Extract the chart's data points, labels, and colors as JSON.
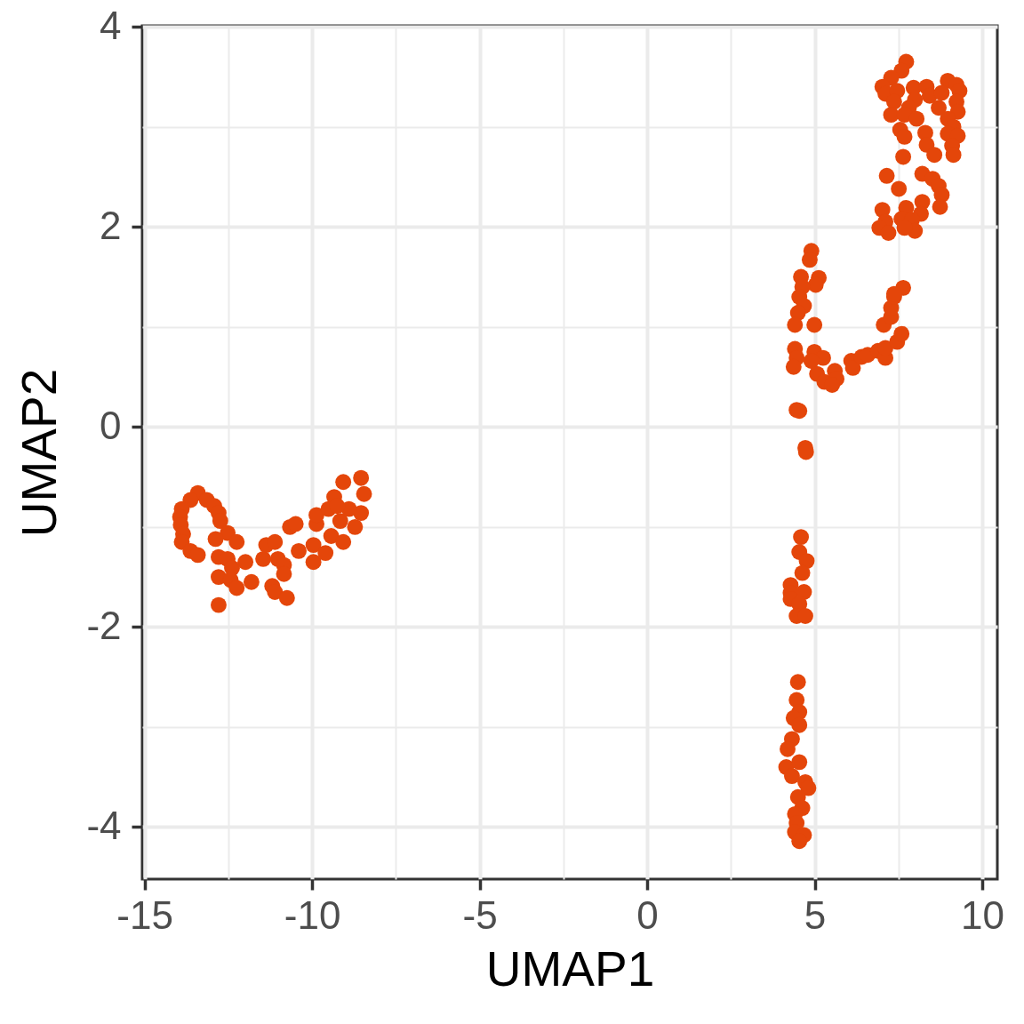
{
  "chart_data": {
    "type": "scatter",
    "xlabel": "UMAP1",
    "ylabel": "UMAP2",
    "xlim": [
      -15.07,
      10.45
    ],
    "ylim": [
      -4.52,
      4.01
    ],
    "xticks": [
      -15,
      {
        "value": -12.5,
        "label": null
      },
      -10,
      {
        "value": -7.5,
        "label": null
      },
      -5,
      {
        "value": -2.5,
        "label": null
      },
      0,
      {
        "value": 2.5,
        "label": null
      },
      5,
      {
        "value": 7.5,
        "label": null
      },
      10
    ],
    "yticks": [
      -4,
      {
        "value": -3,
        "label": null
      },
      -2,
      {
        "value": -1,
        "label": null
      },
      0,
      {
        "value": 1,
        "label": null
      },
      2,
      {
        "value": 3,
        "label": null
      },
      4
    ],
    "grid": true,
    "marker": "circle",
    "series": [
      {
        "color": "#e4460a",
        "x": [
          -13.41,
          -13.63,
          -13.89,
          -13.94,
          -13.92,
          -13.85,
          -13.89,
          -13.63,
          -13.41,
          -13.14,
          -12.92,
          -12.79,
          -12.74,
          -12.52,
          -12.88,
          -12.25,
          -12.79,
          -12.52,
          -11.99,
          -12.39,
          -12.79,
          -12.43,
          -12.25,
          -12.79,
          -11.81,
          -11.46,
          -11.37,
          -11.11,
          -11.02,
          -10.84,
          -10.84,
          -11.19,
          -11.11,
          -10.75,
          -10.66,
          -10.49,
          -10.4,
          -9.96,
          -9.87,
          -9.87,
          -9.96,
          -9.6,
          -9.43,
          -9.51,
          -9.34,
          -9.07,
          -8.54,
          -8.45,
          -8.54,
          -8.72,
          -9.07,
          -9.16,
          -8.9,
          -9.25,
          7.73,
          7.59,
          7.28,
          7.02,
          7.11,
          7.46,
          7.37,
          7.95,
          8.34,
          8.43,
          7.99,
          7.81,
          7.28,
          7.68,
          8.04,
          7.55,
          7.68,
          8.3,
          8.34,
          8.57,
          8.97,
          9.23,
          9.32,
          8.79,
          8.7,
          9.23,
          9.27,
          8.97,
          9.14,
          8.97,
          9.27,
          9.1,
          9.14,
          7.64,
          7.15,
          7.51,
          8.21,
          8.52,
          8.7,
          8.79,
          8.74,
          8.21,
          8.17,
          7.73,
          7.59,
          7.9,
          7.99,
          7.68,
          7.02,
          7.11,
          6.93,
          7.2,
          4.9,
          4.85,
          4.59,
          5.12,
          5.03,
          4.63,
          4.54,
          4.68,
          4.5,
          4.41,
          4.99,
          4.41,
          4.46,
          4.37,
          4.99,
          5.25,
          4.9,
          5.07,
          5.29,
          5.6,
          5.65,
          5.52,
          6.09,
          6.14,
          6.4,
          6.58,
          6.89,
          7.11,
          7.11,
          7.46,
          7.59,
          7.06,
          7.28,
          7.28,
          7.37,
          7.64,
          7.37,
          4.46,
          4.72,
          4.54,
          4.74,
          4.59,
          4.54,
          4.76,
          4.63,
          4.28,
          4.28,
          4.68,
          4.28,
          4.54,
          4.46,
          4.72,
          4.5,
          4.46,
          4.54,
          4.37,
          4.54,
          4.32,
          4.19,
          4.15,
          4.54,
          4.32,
          4.72,
          4.81,
          4.5,
          4.63,
          4.41,
          4.46,
          4.41,
          4.68,
          4.54
        ],
        "values": [
          -0.66,
          -0.73,
          -0.82,
          -0.9,
          -0.98,
          -1.07,
          -1.15,
          -1.24,
          -1.28,
          -0.73,
          -0.79,
          -0.86,
          -0.94,
          -1.06,
          -1.12,
          -1.15,
          -1.3,
          -1.32,
          -1.35,
          -1.41,
          -1.5,
          -1.53,
          -1.61,
          -1.78,
          -1.55,
          -1.32,
          -1.18,
          -1.15,
          -1.32,
          -1.38,
          -1.47,
          -1.59,
          -1.65,
          -1.71,
          -1.0,
          -0.97,
          -1.24,
          -1.35,
          -0.97,
          -0.88,
          -1.18,
          -1.26,
          -1.09,
          -0.82,
          -0.7,
          -0.55,
          -0.51,
          -0.67,
          -0.86,
          -1.0,
          -1.15,
          -0.94,
          -0.82,
          -0.79,
          3.65,
          3.56,
          3.49,
          3.4,
          3.33,
          3.36,
          3.25,
          3.39,
          3.4,
          3.31,
          3.27,
          3.19,
          3.12,
          3.12,
          3.08,
          2.97,
          2.9,
          2.94,
          2.82,
          2.72,
          3.46,
          3.42,
          3.36,
          3.34,
          3.19,
          3.25,
          3.15,
          3.08,
          3.0,
          2.93,
          2.91,
          2.81,
          2.72,
          2.7,
          2.51,
          2.38,
          2.53,
          2.48,
          2.41,
          2.32,
          2.2,
          2.25,
          2.13,
          2.19,
          2.08,
          2.07,
          1.96,
          1.99,
          2.17,
          2.05,
          1.99,
          1.94,
          1.76,
          1.67,
          1.5,
          1.49,
          1.42,
          1.4,
          1.3,
          1.21,
          1.14,
          1.02,
          1.02,
          0.78,
          0.69,
          0.6,
          0.75,
          0.69,
          0.66,
          0.53,
          0.45,
          0.56,
          0.48,
          0.42,
          0.66,
          0.59,
          0.7,
          0.72,
          0.76,
          0.69,
          0.79,
          0.85,
          0.93,
          1.02,
          1.1,
          1.19,
          1.3,
          1.39,
          1.33,
          0.17,
          -0.21,
          0.16,
          -0.25,
          -1.1,
          -1.25,
          -1.34,
          -1.46,
          -1.58,
          -1.66,
          -1.65,
          -1.72,
          -1.77,
          -1.89,
          -1.89,
          -2.55,
          -2.73,
          -2.85,
          -2.91,
          -2.98,
          -3.12,
          -3.22,
          -3.4,
          -3.35,
          -3.49,
          -3.55,
          -3.61,
          -3.7,
          -3.81,
          -3.87,
          -3.96,
          -4.05,
          -4.08,
          -4.14
        ]
      }
    ]
  }
}
